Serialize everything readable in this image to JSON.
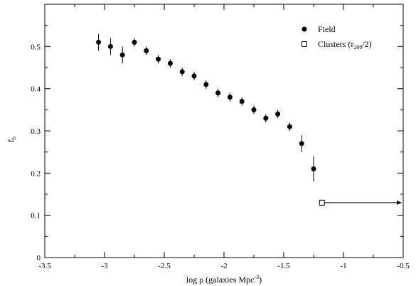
{
  "chart_data": {
    "type": "scatter",
    "title": "",
    "xlabel": {
      "main": "log ρ (galaxies Mpc",
      "sup": "-3",
      "end": ")"
    },
    "ylabel": {
      "main": "f",
      "sub": "b"
    },
    "xlim": [
      -3.5,
      -0.5
    ],
    "ylim": [
      0,
      0.6
    ],
    "x_ticks": [
      -3.5,
      -3,
      -2.5,
      -2,
      -1.5,
      -1,
      -0.5
    ],
    "x_tick_labels": [
      "-3.5",
      "-3",
      "-2.5",
      "-2",
      "-1.5",
      "-1",
      "-0.5"
    ],
    "y_ticks": [
      0,
      0.1,
      0.2,
      0.3,
      0.4,
      0.5
    ],
    "y_tick_labels": [
      "0",
      "0.1",
      "0.2",
      "0.3",
      "0.4",
      "0.5"
    ],
    "grid": false,
    "legend_position": "top-right",
    "series": [
      {
        "name": "Field",
        "marker": "filled-circle",
        "color": "#000000",
        "points": [
          {
            "x": -3.05,
            "y": 0.51,
            "err": 0.02
          },
          {
            "x": -2.95,
            "y": 0.5,
            "err": 0.02
          },
          {
            "x": -2.85,
            "y": 0.48,
            "err": 0.02
          },
          {
            "x": -2.75,
            "y": 0.51,
            "err": 0.01
          },
          {
            "x": -2.65,
            "y": 0.49,
            "err": 0.01
          },
          {
            "x": -2.55,
            "y": 0.47,
            "err": 0.01
          },
          {
            "x": -2.45,
            "y": 0.46,
            "err": 0.01
          },
          {
            "x": -2.35,
            "y": 0.44,
            "err": 0.01
          },
          {
            "x": -2.25,
            "y": 0.43,
            "err": 0.01
          },
          {
            "x": -2.15,
            "y": 0.41,
            "err": 0.01
          },
          {
            "x": -2.05,
            "y": 0.39,
            "err": 0.01
          },
          {
            "x": -1.95,
            "y": 0.38,
            "err": 0.01
          },
          {
            "x": -1.85,
            "y": 0.37,
            "err": 0.01
          },
          {
            "x": -1.75,
            "y": 0.35,
            "err": 0.01
          },
          {
            "x": -1.65,
            "y": 0.33,
            "err": 0.01
          },
          {
            "x": -1.55,
            "y": 0.34,
            "err": 0.01
          },
          {
            "x": -1.45,
            "y": 0.31,
            "err": 0.01
          },
          {
            "x": -1.35,
            "y": 0.27,
            "err": 0.02
          },
          {
            "x": -1.25,
            "y": 0.21,
            "err": 0.03
          }
        ]
      },
      {
        "name": {
          "main": "Clusters (r",
          "sub": "200",
          "end": "/2)"
        },
        "marker": "open-square",
        "color": "#000000",
        "points": [
          {
            "x": -1.18,
            "y": 0.13,
            "err": 0.007,
            "arrow_to_x": -0.5
          }
        ]
      }
    ]
  }
}
